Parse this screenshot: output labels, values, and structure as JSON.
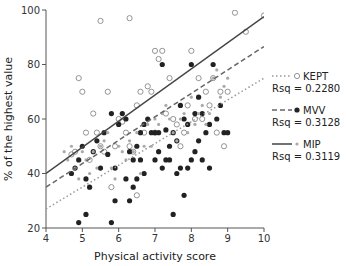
{
  "chart_data": {
    "type": "scatter",
    "title": "",
    "xlabel": "Physical activity score",
    "ylabel": "% of the highest value",
    "xlim": [
      4,
      10
    ],
    "ylim": [
      20,
      100
    ],
    "xticks": [
      4,
      5,
      6,
      7,
      8,
      9,
      10
    ],
    "yticks": [
      20,
      40,
      60,
      80,
      100
    ],
    "grid": false,
    "legend": "right",
    "series": [
      {
        "name": "KEPT",
        "color": "#888888",
        "marker": "open-circle",
        "annotation": "Rsq = 0.2280",
        "x": [
          4.7,
          4.8,
          4.9,
          5.0,
          5.1,
          5.2,
          5.3,
          5.4,
          5.5,
          5.6,
          5.7,
          5.8,
          5.9,
          6.0,
          6.1,
          6.2,
          6.3,
          6.4,
          6.5,
          6.5,
          6.6,
          6.7,
          6.8,
          6.9,
          7.0,
          7.0,
          7.1,
          7.2,
          7.3,
          7.4,
          7.5,
          7.6,
          7.7,
          7.8,
          7.9,
          8.0,
          8.1,
          8.2,
          8.3,
          8.4,
          8.5,
          8.6,
          8.7,
          8.8,
          8.9,
          9.0,
          9.2,
          9.5,
          10.0,
          5.5,
          6.3
        ],
        "values": [
          47,
          48,
          75,
          70,
          55,
          45,
          62,
          55,
          50,
          48,
          70,
          35,
          50,
          60,
          59,
          55,
          50,
          48,
          65,
          32,
          70,
          55,
          72,
          70,
          85,
          55,
          82,
          85,
          62,
          75,
          60,
          58,
          50,
          55,
          65,
          85,
          60,
          75,
          60,
          70,
          65,
          75,
          55,
          70,
          50,
          70,
          99,
          92,
          98,
          96,
          97
        ],
        "fit": {
          "x": [
            4,
            10
          ],
          "values": [
            27,
            75
          ],
          "color": "#999999",
          "line_style": "dotted"
        }
      },
      {
        "name": "MVV",
        "color": "#222222",
        "marker": "circle",
        "annotation": "Rsq = 0.3128",
        "x": [
          4.7,
          4.8,
          4.9,
          5.0,
          5.1,
          5.2,
          5.3,
          5.4,
          5.5,
          5.6,
          5.7,
          5.8,
          5.9,
          6.0,
          6.1,
          6.2,
          6.3,
          6.4,
          6.5,
          6.6,
          6.7,
          6.8,
          6.9,
          7.0,
          7.1,
          7.2,
          7.3,
          7.4,
          7.5,
          7.6,
          7.7,
          7.8,
          7.9,
          8.0,
          8.1,
          8.2,
          8.3,
          8.4,
          8.5,
          8.6,
          8.7,
          8.8,
          8.9,
          9.0,
          4.9,
          5.1,
          5.8,
          5.9,
          6.2,
          6.3,
          6.4,
          6.5,
          6.6,
          6.7,
          7.0,
          7.1,
          7.2,
          7.3,
          7.4,
          7.5,
          7.6,
          7.7,
          7.8,
          7.9,
          8.0,
          8.1,
          8.2,
          8.3,
          8.5
        ],
        "values": [
          40,
          42,
          45,
          50,
          38,
          35,
          48,
          52,
          42,
          55,
          47,
          62,
          42,
          58,
          62,
          60,
          48,
          45,
          50,
          55,
          58,
          60,
          55,
          55,
          55,
          80,
          56,
          50,
          55,
          52,
          65,
          60,
          58,
          80,
          62,
          68,
          62,
          55,
          58,
          80,
          60,
          65,
          55,
          55,
          22,
          25,
          22,
          30,
          38,
          30,
          35,
          38,
          45,
          40,
          45,
          48,
          42,
          45,
          45,
          25,
          40,
          42,
          32,
          42,
          45,
          48,
          52,
          45,
          42
        ],
        "fit": {
          "x": [
            4,
            10
          ],
          "values": [
            35,
            86.6
          ],
          "color": "#666666",
          "line_style": "dashed"
        }
      },
      {
        "name": "MIP",
        "color": "#aaaaaa",
        "marker": "dot",
        "annotation": "Rsq = 0.3119",
        "x": [
          4.5,
          4.6,
          4.7,
          4.8,
          4.9,
          5.0,
          5.1,
          5.2,
          5.3,
          5.4,
          5.5,
          5.6,
          5.7,
          5.8,
          5.9,
          6.0,
          6.1,
          6.2,
          6.3,
          6.4,
          6.5,
          6.6,
          6.7,
          6.8,
          6.9,
          7.0,
          7.1,
          7.2,
          7.3,
          7.4,
          7.5,
          7.6,
          7.7,
          7.8,
          7.9,
          8.0,
          8.1,
          8.2,
          8.3,
          8.4,
          8.5,
          8.6,
          8.7,
          8.8,
          8.9,
          9.0
        ],
        "values": [
          48,
          45,
          50,
          42,
          38,
          48,
          45,
          40,
          48,
          42,
          50,
          52,
          55,
          42,
          38,
          50,
          48,
          45,
          52,
          48,
          55,
          40,
          50,
          58,
          50,
          60,
          58,
          62,
          65,
          60,
          55,
          52,
          60,
          62,
          55,
          68,
          58,
          62,
          65,
          58,
          62,
          75,
          78,
          68,
          72,
          75
        ],
        "fit": {
          "x": [
            4,
            10
          ],
          "values": [
            40,
            97.6
          ],
          "color": "#444444",
          "line_style": "solid"
        }
      }
    ]
  }
}
